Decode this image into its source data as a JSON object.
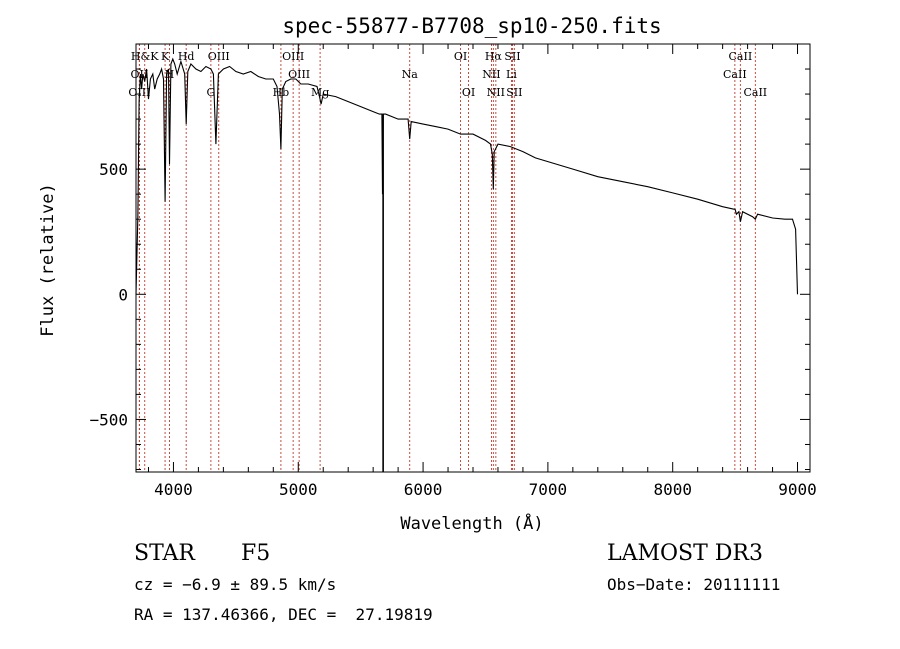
{
  "chart_data": {
    "type": "line",
    "title": "spec-55877-B7708_sp10-250.fits",
    "xlabel": "Wavelength (Å)",
    "ylabel": "Flux (relative)",
    "xlim": [
      3700,
      9100
    ],
    "ylim": [
      -710,
      1000
    ],
    "x_ticks": [
      4000,
      5000,
      6000,
      7000,
      8000,
      9000
    ],
    "x_tick_labels": [
      "4000",
      "5000",
      "6000",
      "7000",
      "8000",
      "9000"
    ],
    "y_ticks": [
      -500,
      0,
      500
    ],
    "y_tick_labels": [
      "−500",
      "0",
      "500"
    ],
    "series": [
      {
        "name": "spectrum",
        "x": [
          3700,
          3715,
          3725,
          3735,
          3745,
          3755,
          3770,
          3785,
          3800,
          3815,
          3835,
          3850,
          3870,
          3890,
          3905,
          3920,
          3933,
          3945,
          3960,
          3968,
          3980,
          3995,
          4010,
          4030,
          4060,
          4090,
          4102,
          4115,
          4140,
          4180,
          4220,
          4260,
          4300,
          4320,
          4340,
          4360,
          4400,
          4450,
          4500,
          4560,
          4620,
          4680,
          4740,
          4800,
          4830,
          4850,
          4861,
          4872,
          4900,
          4940,
          4980,
          5020,
          5080,
          5150,
          5170,
          5183,
          5200,
          5300,
          5400,
          5500,
          5600,
          5650,
          5670,
          5675,
          5680,
          5700,
          5800,
          5880,
          5893,
          5905,
          6000,
          6100,
          6200,
          6300,
          6400,
          6500,
          6540,
          6555,
          6563,
          6570,
          6600,
          6700,
          6800,
          6900,
          7000,
          7200,
          7400,
          7600,
          7800,
          8000,
          8200,
          8400,
          8490,
          8500,
          8510,
          8530,
          8542,
          8560,
          8640,
          8662,
          8680,
          8800,
          8900,
          8960,
          8985,
          9000
        ],
        "y": [
          0,
          320,
          770,
          880,
          820,
          880,
          850,
          900,
          780,
          860,
          880,
          820,
          860,
          880,
          900,
          860,
          370,
          880,
          900,
          520,
          920,
          940,
          920,
          880,
          930,
          880,
          680,
          890,
          920,
          900,
          890,
          910,
          900,
          880,
          600,
          880,
          900,
          910,
          890,
          880,
          890,
          870,
          860,
          860,
          830,
          720,
          580,
          820,
          850,
          860,
          860,
          840,
          840,
          830,
          790,
          760,
          800,
          790,
          770,
          750,
          730,
          720,
          720,
          400,
          720,
          720,
          700,
          700,
          620,
          690,
          680,
          670,
          660,
          640,
          640,
          615,
          600,
          560,
          420,
          570,
          600,
          590,
          570,
          545,
          530,
          500,
          470,
          450,
          430,
          405,
          380,
          350,
          340,
          340,
          320,
          330,
          290,
          330,
          310,
          300,
          320,
          305,
          300,
          300,
          260,
          0
        ]
      }
    ],
    "line_markers": [
      {
        "label": "H&K",
        "x": 3770,
        "row": 1
      },
      {
        "label": "OII",
        "x": 3727,
        "row": 2
      },
      {
        "label": "OIII",
        "x": 3727,
        "row": 3
      },
      {
        "label": "K",
        "x": 3933,
        "row": 1
      },
      {
        "label": "H",
        "x": 3968,
        "row": 2
      },
      {
        "label": "Hd",
        "x": 4102,
        "row": 1
      },
      {
        "label": "G",
        "x": 4300,
        "row": 3
      },
      {
        "label": "OIII",
        "x": 4363,
        "row": 1
      },
      {
        "label": "Hb",
        "x": 4861,
        "row": 3
      },
      {
        "label": "OIII",
        "x": 4959,
        "row": 1
      },
      {
        "label": "OIII",
        "x": 5007,
        "row": 2
      },
      {
        "label": "Mg",
        "x": 5175,
        "row": 3
      },
      {
        "label": "Na",
        "x": 5893,
        "row": 2
      },
      {
        "label": "OI",
        "x": 6300,
        "row": 1
      },
      {
        "label": "OI",
        "x": 6364,
        "row": 3
      },
      {
        "label": "Hα",
        "x": 6563,
        "row": 1
      },
      {
        "label": "NII",
        "x": 6548,
        "row": 2
      },
      {
        "label": "NII",
        "x": 6583,
        "row": 3
      },
      {
        "label": "SII",
        "x": 6716,
        "row": 1
      },
      {
        "label": "Li",
        "x": 6708,
        "row": 2
      },
      {
        "label": "SII",
        "x": 6731,
        "row": 3
      },
      {
        "label": "CaII",
        "x": 8542,
        "row": 1
      },
      {
        "label": "CaII",
        "x": 8498,
        "row": 2
      },
      {
        "label": "CaII",
        "x": 8662,
        "row": 3
      }
    ]
  },
  "info": {
    "class": "STAR",
    "subclass": "F5",
    "survey": "LAMOST DR3",
    "cz": "cz = −6.9 ± 89.5 km/s",
    "obs_date": "Obs−Date: 20111111",
    "coords": "RA = 137.46366, DEC =  27.19819"
  }
}
